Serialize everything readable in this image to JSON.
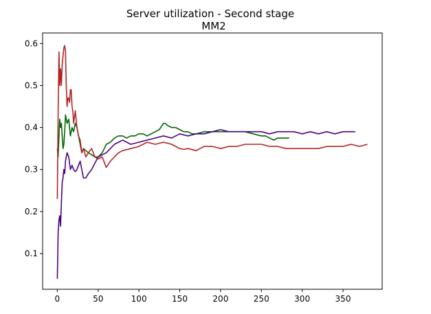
{
  "chart_data": {
    "type": "line",
    "title": "Server utilization - Second stage",
    "subtitle": "MM2",
    "xlabel": "",
    "ylabel": "",
    "xlim": [
      -18,
      398
    ],
    "ylim": [
      0.015,
      0.625
    ],
    "grid": false,
    "x_ticks": [
      0,
      50,
      100,
      150,
      200,
      250,
      300,
      350
    ],
    "y_ticks": [
      0.1,
      0.2,
      0.3,
      0.4,
      0.5,
      0.6
    ],
    "series": [
      {
        "color": "#006400",
        "x": [
          0,
          1,
          2,
          3,
          4,
          5,
          6,
          7,
          8,
          9,
          10,
          11,
          12,
          14,
          16,
          18,
          20,
          22,
          24,
          26,
          28,
          30,
          32,
          35,
          38,
          42,
          46,
          50,
          55,
          60,
          65,
          70,
          75,
          80,
          85,
          90,
          95,
          100,
          105,
          110,
          115,
          120,
          125,
          130,
          132,
          135,
          140,
          145,
          150,
          155,
          160,
          165,
          170,
          180,
          190,
          200,
          210,
          220,
          230,
          240,
          250,
          255,
          260,
          265,
          270,
          275,
          280,
          284
        ],
        "y": [
          0.35,
          0.33,
          0.38,
          0.42,
          0.4,
          0.41,
          0.38,
          0.35,
          0.36,
          0.39,
          0.43,
          0.42,
          0.41,
          0.42,
          0.38,
          0.4,
          0.39,
          0.41,
          0.4,
          0.38,
          0.36,
          0.34,
          0.35,
          0.345,
          0.34,
          0.335,
          0.33,
          0.33,
          0.34,
          0.36,
          0.365,
          0.375,
          0.38,
          0.38,
          0.375,
          0.38,
          0.38,
          0.385,
          0.385,
          0.38,
          0.385,
          0.39,
          0.395,
          0.41,
          0.41,
          0.405,
          0.4,
          0.4,
          0.395,
          0.39,
          0.39,
          0.385,
          0.385,
          0.39,
          0.39,
          0.39,
          0.39,
          0.39,
          0.39,
          0.385,
          0.38,
          0.38,
          0.375,
          0.37,
          0.375,
          0.375,
          0.375,
          0.375
        ]
      },
      {
        "color": "#4b0082",
        "x": [
          0,
          1,
          2,
          3,
          4,
          5,
          6,
          7,
          8,
          9,
          10,
          12,
          14,
          16,
          18,
          20,
          22,
          24,
          26,
          28,
          30,
          32,
          35,
          38,
          42,
          46,
          50,
          55,
          60,
          65,
          70,
          75,
          80,
          90,
          100,
          110,
          120,
          130,
          140,
          150,
          160,
          170,
          180,
          190,
          200,
          210,
          220,
          230,
          240,
          250,
          260,
          270,
          280,
          290,
          300,
          310,
          320,
          330,
          340,
          350,
          360,
          365
        ],
        "y": [
          0.04,
          0.15,
          0.18,
          0.19,
          0.165,
          0.22,
          0.27,
          0.28,
          0.3,
          0.29,
          0.32,
          0.34,
          0.33,
          0.3,
          0.31,
          0.3,
          0.295,
          0.3,
          0.31,
          0.32,
          0.3,
          0.28,
          0.28,
          0.29,
          0.3,
          0.315,
          0.33,
          0.335,
          0.34,
          0.35,
          0.36,
          0.365,
          0.37,
          0.36,
          0.365,
          0.37,
          0.375,
          0.38,
          0.375,
          0.385,
          0.38,
          0.385,
          0.385,
          0.39,
          0.395,
          0.39,
          0.39,
          0.39,
          0.39,
          0.39,
          0.385,
          0.39,
          0.39,
          0.39,
          0.385,
          0.39,
          0.385,
          0.39,
          0.385,
          0.39,
          0.39,
          0.39
        ]
      },
      {
        "color": "#b22222",
        "x": [
          0,
          1,
          2,
          3,
          4,
          5,
          6,
          7,
          8,
          9,
          10,
          11,
          12,
          13,
          14,
          15,
          16,
          17,
          18,
          19,
          20,
          22,
          24,
          26,
          28,
          30,
          32,
          35,
          38,
          42,
          46,
          50,
          55,
          60,
          65,
          70,
          75,
          80,
          90,
          100,
          110,
          120,
          130,
          140,
          145,
          150,
          155,
          160,
          170,
          180,
          190,
          200,
          210,
          220,
          230,
          240,
          250,
          260,
          270,
          280,
          290,
          300,
          310,
          320,
          330,
          340,
          350,
          360,
          370,
          380
        ],
        "y": [
          0.23,
          0.44,
          0.58,
          0.5,
          0.54,
          0.5,
          0.55,
          0.57,
          0.59,
          0.595,
          0.58,
          0.5,
          0.45,
          0.47,
          0.47,
          0.46,
          0.49,
          0.49,
          0.45,
          0.44,
          0.41,
          0.44,
          0.4,
          0.38,
          0.37,
          0.34,
          0.35,
          0.33,
          0.34,
          0.35,
          0.33,
          0.325,
          0.33,
          0.305,
          0.32,
          0.33,
          0.34,
          0.345,
          0.35,
          0.355,
          0.365,
          0.36,
          0.365,
          0.36,
          0.355,
          0.35,
          0.348,
          0.35,
          0.345,
          0.355,
          0.355,
          0.35,
          0.355,
          0.355,
          0.36,
          0.36,
          0.36,
          0.355,
          0.355,
          0.35,
          0.35,
          0.35,
          0.35,
          0.35,
          0.355,
          0.355,
          0.355,
          0.36,
          0.355,
          0.36
        ]
      }
    ]
  }
}
